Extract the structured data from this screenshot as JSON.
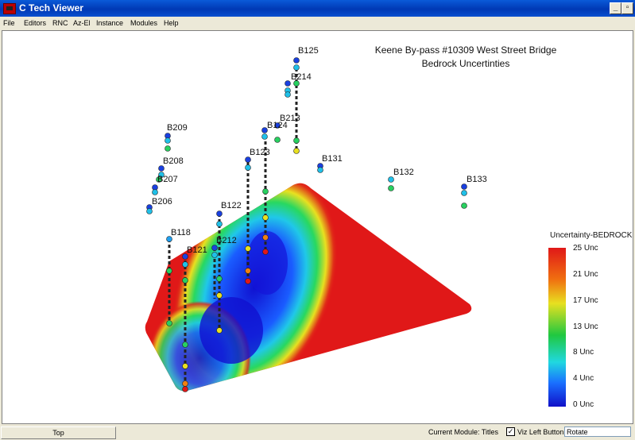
{
  "window": {
    "title": "C Tech Viewer",
    "min_label": "_",
    "max_label": "▫"
  },
  "menu": {
    "items": [
      "File",
      "Editors",
      "RNC",
      "Az-El",
      "Instance",
      "Modules",
      "Help"
    ]
  },
  "plot": {
    "title_line1": "Keene By-pass #10309 West Street Bridge",
    "title_line2": "Bedrock Uncertinties",
    "legend_title": "Uncertainty-BEDROCK",
    "legend_ticks": [
      "25 Unc",
      "21 Unc",
      "17 Unc",
      "13 Unc",
      "8 Unc",
      "4 Unc",
      "0 Unc"
    ],
    "boring_labels": [
      "B125",
      "B214",
      "B213",
      "B124",
      "B209",
      "B123",
      "B131",
      "B132",
      "B133",
      "B208",
      "B207",
      "B206",
      "B122",
      "B118",
      "B121",
      "B212"
    ]
  },
  "status": {
    "top_button": "Top",
    "current_module": "Current Module: Titles",
    "titles_checked": "✓",
    "viz_left": "Viz Left Button",
    "rotate_value": "Rotate"
  },
  "colors": {
    "titlebar": "#0039b5",
    "surface_high": "#e01818",
    "surface_low": "#1010d0",
    "surface_mid": "#20d060"
  }
}
